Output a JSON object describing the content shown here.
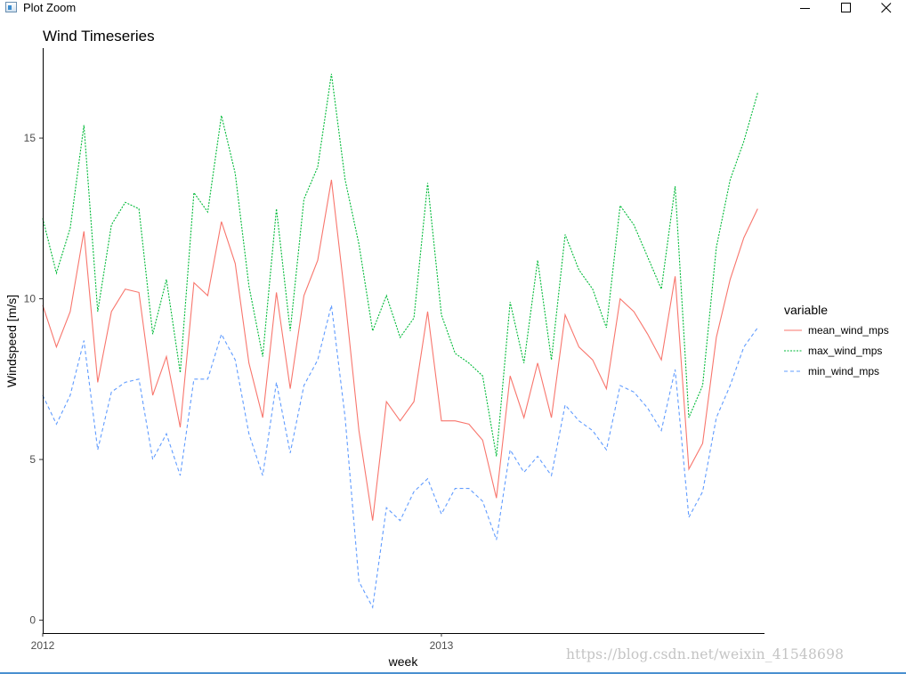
{
  "window": {
    "title": "Plot Zoom",
    "icon": "plot-zoom-app-icon",
    "controls": [
      "minimize-icon",
      "maximize-icon",
      "close-icon"
    ]
  },
  "watermark": "https://blog.csdn.net/weixin_41548698",
  "chart_data": {
    "type": "line",
    "title": "Wind Timeseries",
    "xlabel": "week",
    "ylabel": "Windspeed [m/s]",
    "xlim": [
      0,
      52.5
    ],
    "ylim": [
      -0.4,
      17.8
    ],
    "x_ticks": [
      {
        "value": 0,
        "label": "2012"
      },
      {
        "value": 29,
        "label": "2013"
      }
    ],
    "y_ticks": [
      0,
      5,
      10,
      15
    ],
    "grid": false,
    "legend": {
      "title": "variable",
      "position": "right"
    },
    "x": [
      0,
      1,
      2,
      3,
      4,
      5,
      6,
      7,
      8,
      9,
      10,
      11,
      12,
      13,
      14,
      15,
      16,
      17,
      18,
      19,
      20,
      21,
      22,
      23,
      24,
      25,
      26,
      27,
      28,
      29,
      30,
      31,
      32,
      33,
      34,
      35,
      36,
      37,
      38,
      39,
      40,
      41,
      42,
      43,
      44,
      45,
      46,
      47,
      48,
      49,
      50,
      51,
      52
    ],
    "series": [
      {
        "name": "mean_wind_mps",
        "color": "#f8766d",
        "dash": "solid",
        "values": [
          9.8,
          8.5,
          9.6,
          12.1,
          7.4,
          9.6,
          10.3,
          10.2,
          7.0,
          8.2,
          6.0,
          10.5,
          10.1,
          12.4,
          11.1,
          8.0,
          6.3,
          10.2,
          7.2,
          10.1,
          11.2,
          13.7,
          10.0,
          5.9,
          3.1,
          6.8,
          6.2,
          6.8,
          9.6,
          6.2,
          6.2,
          6.1,
          5.6,
          3.8,
          7.6,
          6.3,
          8.0,
          6.3,
          9.5,
          8.5,
          8.1,
          7.2,
          10.0,
          9.6,
          8.9,
          8.1,
          10.7,
          4.7,
          5.5,
          8.8,
          10.6,
          11.9,
          12.8
        ]
      },
      {
        "name": "max_wind_mps",
        "color": "#00ba38",
        "dash": "dotted",
        "values": [
          12.5,
          10.8,
          12.2,
          15.4,
          9.6,
          12.3,
          13.0,
          12.8,
          8.9,
          10.6,
          7.7,
          13.3,
          12.7,
          15.7,
          13.9,
          10.4,
          8.2,
          12.8,
          9.0,
          13.1,
          14.1,
          17.0,
          13.7,
          11.7,
          9.0,
          10.1,
          8.8,
          9.4,
          13.6,
          9.5,
          8.3,
          8.0,
          7.6,
          5.1,
          9.9,
          8.0,
          11.2,
          8.1,
          12.0,
          10.9,
          10.3,
          9.1,
          12.9,
          12.3,
          11.3,
          10.3,
          13.5,
          6.3,
          7.3,
          11.6,
          13.7,
          14.9,
          16.4
        ]
      },
      {
        "name": "min_wind_mps",
        "color": "#619cff",
        "dash": "dashed",
        "values": [
          7.0,
          6.1,
          7.0,
          8.7,
          5.3,
          7.1,
          7.4,
          7.5,
          5.0,
          5.8,
          4.5,
          7.5,
          7.5,
          8.9,
          8.1,
          5.8,
          4.5,
          7.4,
          5.2,
          7.3,
          8.1,
          9.8,
          6.3,
          1.2,
          0.4,
          3.5,
          3.1,
          4.0,
          4.4,
          3.3,
          4.1,
          4.1,
          3.7,
          2.5,
          5.3,
          4.6,
          5.1,
          4.5,
          6.7,
          6.2,
          5.9,
          5.3,
          7.3,
          7.1,
          6.6,
          5.9,
          7.8,
          3.2,
          4.0,
          6.3,
          7.3,
          8.5,
          9.1
        ]
      }
    ]
  }
}
